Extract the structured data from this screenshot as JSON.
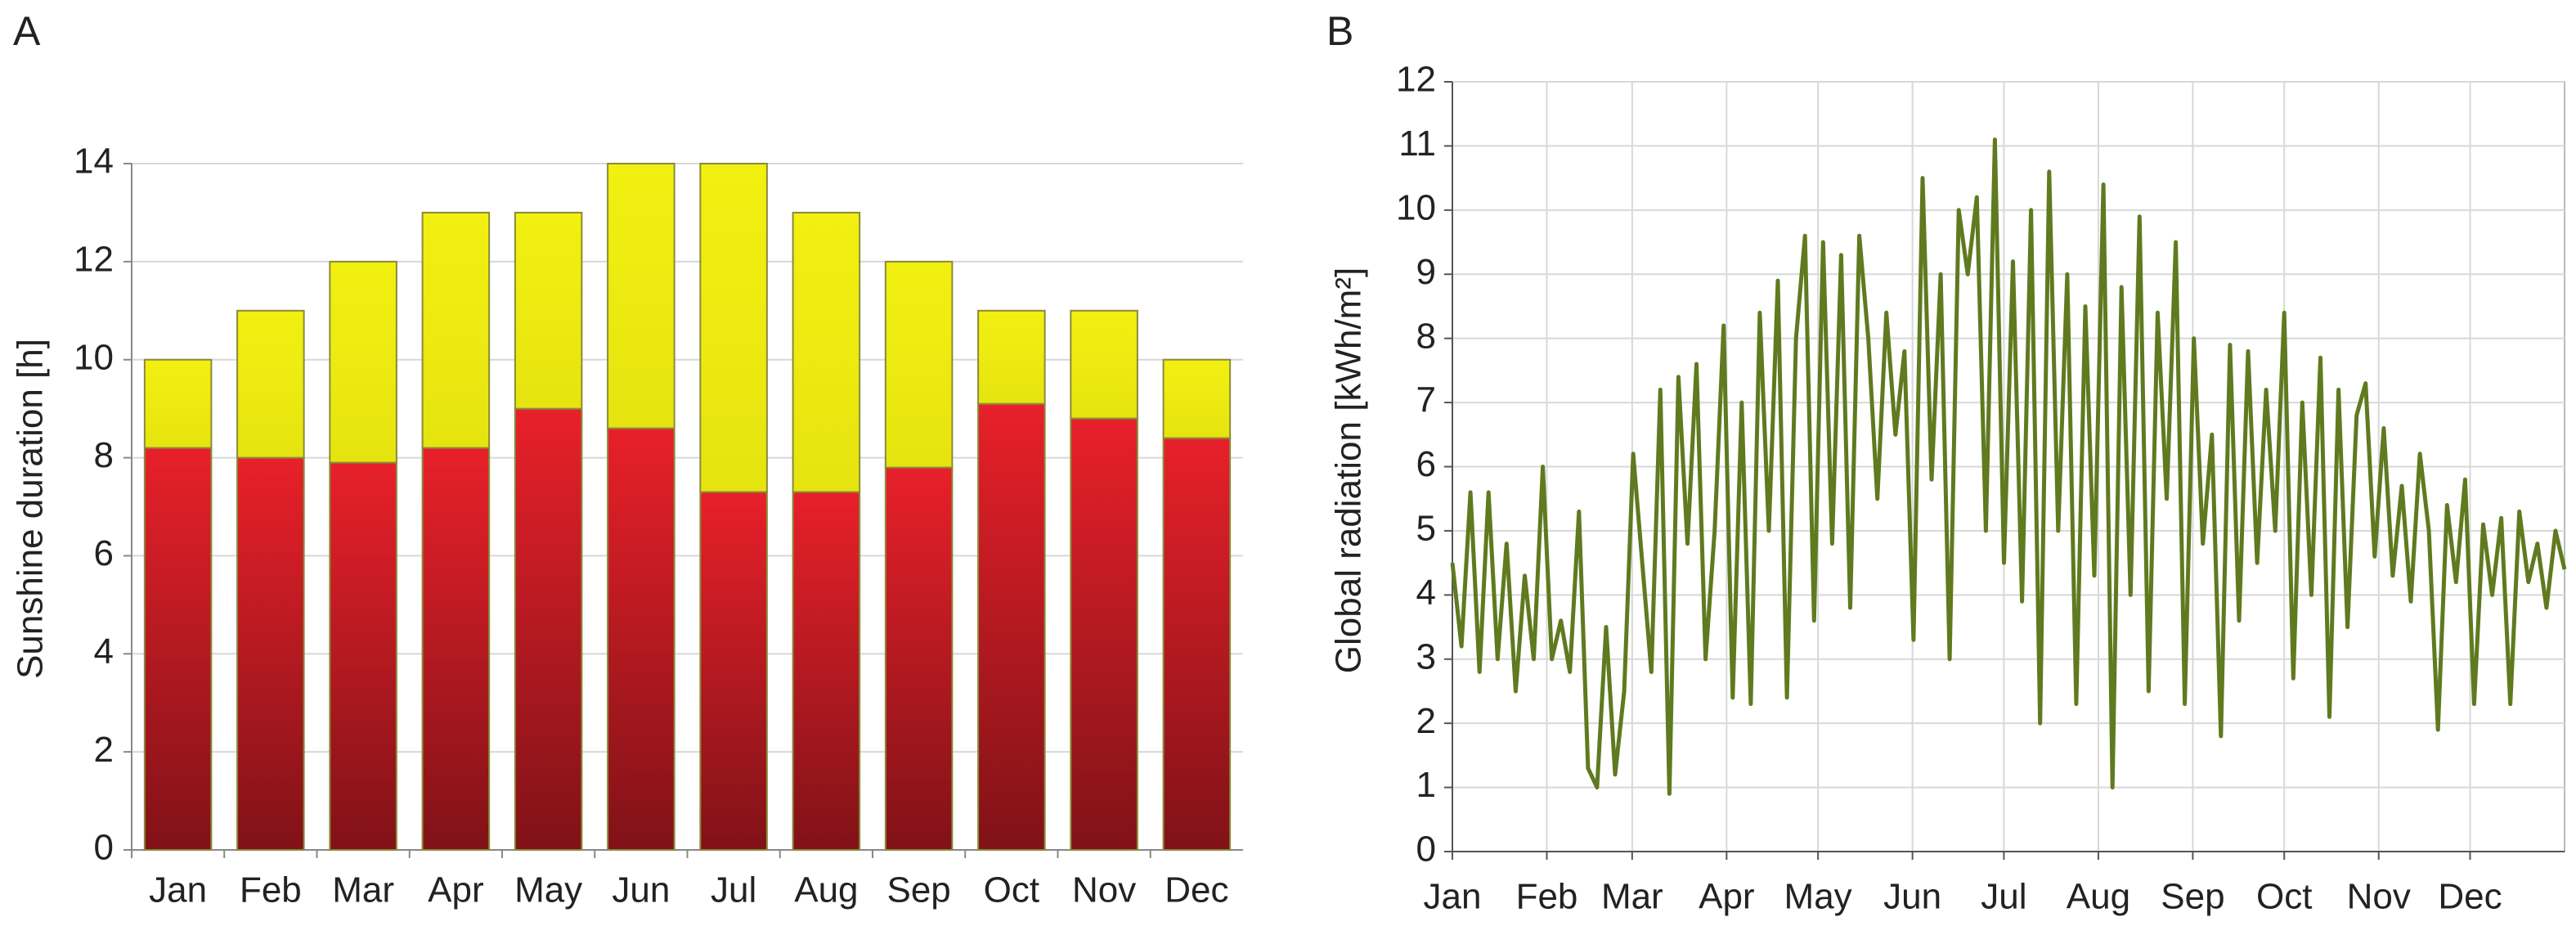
{
  "chart_data": [
    {
      "type": "bar",
      "stacked": true,
      "label": "A",
      "ylabel": "Sunshine duration [h]",
      "categories": [
        "Jan",
        "Feb",
        "Mar",
        "Apr",
        "May",
        "Jun",
        "Jul",
        "Aug",
        "Sep",
        "Oct",
        "Nov",
        "Dec"
      ],
      "series": [
        {
          "color": "#e8202a",
          "values": [
            8.2,
            8.0,
            7.9,
            8.2,
            9.0,
            8.6,
            7.3,
            7.3,
            7.8,
            9.1,
            8.8,
            8.4
          ]
        },
        {
          "color": "#f2f010",
          "values": [
            1.8,
            3.0,
            4.1,
            4.8,
            4.0,
            5.4,
            6.7,
            5.7,
            4.2,
            1.9,
            2.2,
            1.6
          ]
        }
      ],
      "ylim": [
        0,
        14
      ],
      "yticks": [
        0,
        2,
        4,
        6,
        8,
        10,
        12,
        14
      ],
      "grid": true
    },
    {
      "type": "line",
      "label": "B",
      "ylabel": "Global radiation [kWh/m²]",
      "color": "#5f7a1f",
      "xlim": [
        0,
        365
      ],
      "xticks": [
        {
          "value": 0,
          "label": "Jan"
        },
        {
          "value": 31,
          "label": "Feb"
        },
        {
          "value": 59,
          "label": "Mar"
        },
        {
          "value": 90,
          "label": "Apr"
        },
        {
          "value": 120,
          "label": "May"
        },
        {
          "value": 151,
          "label": "Jun"
        },
        {
          "value": 181,
          "label": "Jul"
        },
        {
          "value": 212,
          "label": "Aug"
        },
        {
          "value": 243,
          "label": "Sep"
        },
        {
          "value": 273,
          "label": "Oct"
        },
        {
          "value": 304,
          "label": "Nov"
        },
        {
          "value": 334,
          "label": "Dec"
        }
      ],
      "values": [
        4.5,
        3.2,
        5.6,
        2.8,
        5.6,
        3.0,
        4.8,
        2.5,
        4.3,
        3.0,
        6.0,
        3.0,
        3.6,
        2.8,
        5.3,
        1.3,
        1.0,
        3.5,
        1.2,
        2.5,
        6.2,
        4.5,
        2.8,
        7.2,
        0.9,
        7.4,
        4.8,
        7.6,
        3.0,
        5.0,
        8.2,
        2.4,
        7.0,
        2.3,
        8.4,
        5.0,
        8.9,
        2.4,
        8.0,
        9.6,
        3.6,
        9.5,
        4.8,
        9.3,
        3.8,
        9.6,
        8.0,
        5.5,
        8.4,
        6.5,
        7.8,
        3.3,
        10.5,
        5.8,
        9.0,
        3.0,
        10.0,
        9.0,
        10.2,
        5.0,
        11.1,
        4.5,
        9.2,
        3.9,
        10.0,
        2.0,
        10.6,
        5.0,
        9.0,
        2.3,
        8.5,
        4.3,
        10.4,
        1.0,
        8.8,
        4.0,
        9.9,
        2.5,
        8.4,
        5.5,
        9.5,
        2.3,
        8.0,
        4.8,
        6.5,
        1.8,
        7.9,
        3.6,
        7.8,
        4.5,
        7.2,
        5.0,
        8.4,
        2.7,
        7.0,
        4.0,
        7.7,
        2.1,
        7.2,
        3.5,
        6.8,
        7.3,
        4.6,
        6.6,
        4.3,
        5.7,
        3.9,
        6.2,
        5.0,
        1.9,
        5.4,
        4.2,
        5.8,
        2.3,
        5.1,
        4.0,
        5.2,
        2.3,
        5.3,
        4.2,
        4.8,
        3.8,
        5.0,
        4.4
      ],
      "ylim": [
        0,
        12
      ],
      "yticks": [
        0,
        1,
        2,
        3,
        4,
        5,
        6,
        7,
        8,
        9,
        10,
        11,
        12
      ],
      "grid": true
    }
  ]
}
